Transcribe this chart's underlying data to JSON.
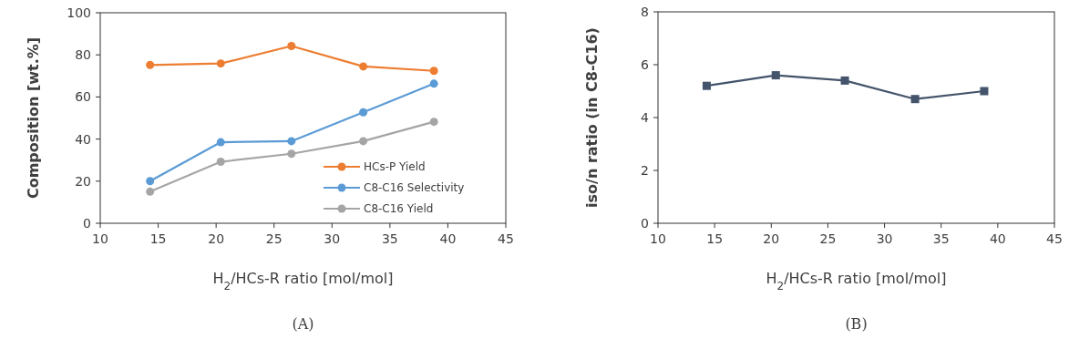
{
  "chart_data": [
    {
      "type": "line",
      "xlabel": "H$_{2}$/HCs-R ratio [mol/mol]",
      "ylabel": "Composition [wt.%]",
      "annotations": [
        "(A)"
      ],
      "x": [
        14.3,
        20.4,
        26.5,
        32.7,
        38.8
      ],
      "series": [
        {
          "name": "HCs-P Yield",
          "color": "#ed7d31",
          "values": [
            75.2,
            75.9,
            84.2,
            74.5,
            72.4
          ]
        },
        {
          "name": "C8-C16 Selectivity",
          "color": "#5b9bd5",
          "values": [
            20,
            38.5,
            39,
            52.7,
            66.3
          ]
        },
        {
          "name": "C8-C16 Yield",
          "color": "#a5a5a5",
          "values": [
            15,
            29.2,
            33,
            39,
            48.2
          ]
        }
      ],
      "xlim": [
        10,
        45
      ],
      "xticks": [
        10,
        15,
        20,
        25,
        30,
        35,
        40,
        45
      ],
      "ylim": [
        0,
        100
      ],
      "yticks": [
        0,
        20,
        40,
        60,
        80,
        100
      ],
      "marker": "circle",
      "legend": "bottom right",
      "grid": false
    },
    {
      "type": "line",
      "xlabel": "H$_{2}$/HCs-R ratio [mol/mol]",
      "ylabel": "iso/n ratio (in C8-C16)",
      "annotations": [
        "(B)"
      ],
      "x": [
        14.3,
        20.4,
        26.5,
        32.7,
        38.8
      ],
      "series": [
        {
          "color": "#44546a",
          "values": [
            5.2,
            5.6,
            5.4,
            4.7,
            5.0
          ]
        }
      ],
      "xlim": [
        10,
        45
      ],
      "xticks": [
        10,
        15,
        20,
        25,
        30,
        35,
        40,
        45
      ],
      "ylim": [
        0,
        8
      ],
      "yticks": [
        0,
        2,
        4,
        6,
        8
      ],
      "marker": "square",
      "legend": false,
      "grid": false
    }
  ]
}
